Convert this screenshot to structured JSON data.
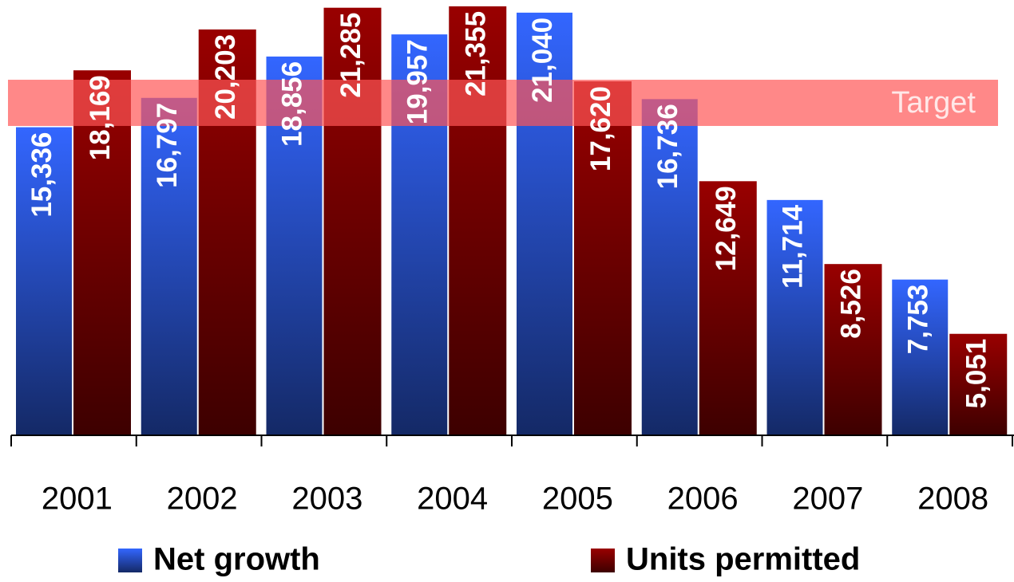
{
  "chart_data": {
    "type": "bar",
    "categories": [
      "2001",
      "2002",
      "2003",
      "2004",
      "2005",
      "2006",
      "2007",
      "2008"
    ],
    "series": [
      {
        "name": "Net growth",
        "color": "#3366ff",
        "values": [
          15336,
          16797,
          18856,
          19957,
          21040,
          16736,
          11714,
          7753
        ],
        "value_labels": [
          "15,336",
          "16,797",
          "18,856",
          "19,957",
          "21,040",
          "16,736",
          "11,714",
          "7,753"
        ]
      },
      {
        "name": "Units permitted",
        "color": "#990000",
        "values": [
          18169,
          20203,
          21285,
          21355,
          17620,
          12649,
          8526,
          5051
        ],
        "value_labels": [
          "18,169",
          "20,203",
          "21,285",
          "21,355",
          "17,620",
          "12,649",
          "8,526",
          "5,051"
        ]
      }
    ],
    "target": {
      "label": "Target",
      "range": [
        15400,
        17700
      ],
      "color": "#ff5555"
    },
    "ylim": [
      0,
      21670
    ]
  }
}
